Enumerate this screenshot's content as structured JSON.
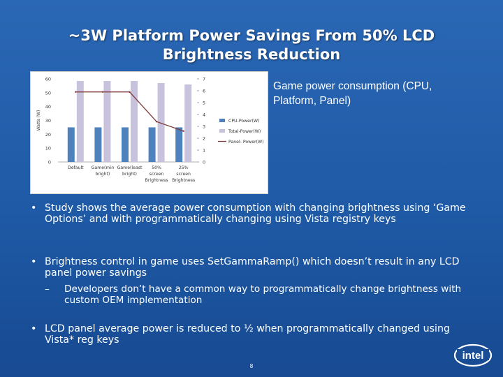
{
  "slide": {
    "title_line1": "~3W Platform Power Savings From 50% LCD",
    "title_line2": "Brightness Reduction",
    "caption": "Game power consumption (CPU, Platform, Panel)",
    "page_number": "8",
    "logo_text": "intel"
  },
  "bullets": [
    {
      "dot": "•",
      "text": "Study shows the average power consumption with changing brightness using ‘Game Options’ and with programmatically changing using Vista registry keys"
    },
    {
      "dot": "•",
      "text": "Brightness control in game uses SetGammaRamp() which doesn’t result in any LCD panel power savings",
      "sub": {
        "dash": "–",
        "text": "Developers don’t have a common way to programmatically change brightness with custom OEM implementation"
      }
    },
    {
      "dot": "•",
      "text": "LCD panel average power is reduced to ½ when programmatically changed using Vista* reg keys"
    }
  ],
  "chart_data": {
    "type": "bar",
    "categories": [
      "Default",
      "Game(min bright)",
      "Game(least bright)",
      "50% screen Brightness",
      "25% screen Brightness"
    ],
    "tick_labels": [
      [
        "Default"
      ],
      [
        "Game(min",
        "bright)"
      ],
      [
        "Game(least",
        "bright)"
      ],
      [
        "50%",
        "screen",
        "Brightness"
      ],
      [
        "25%",
        "screen",
        "Brightness"
      ]
    ],
    "ylabel": "Watts (W)",
    "ylim": [
      0,
      60
    ],
    "yticks": [
      0,
      10,
      20,
      30,
      40,
      50,
      60
    ],
    "y2lim": [
      0,
      7
    ],
    "y2ticks": [
      0,
      1,
      2,
      3,
      4,
      5,
      6,
      7
    ],
    "series": [
      {
        "name": "CPU-Power(W)",
        "type": "bar",
        "axis": "left",
        "color": "#4f81bd",
        "values": [
          25,
          25,
          25,
          25,
          25
        ]
      },
      {
        "name": "Total-Power(W)",
        "type": "bar",
        "axis": "left",
        "color": "#c8c2dc",
        "values": [
          58.5,
          58.5,
          58.5,
          57,
          56
        ]
      },
      {
        "name": "Panel- Power(W)",
        "type": "line",
        "axis": "right",
        "color": "#7f3a3a",
        "values": [
          5.9,
          5.9,
          5.9,
          3.4,
          2.6
        ]
      }
    ],
    "legend_position": "right",
    "grid": false
  }
}
